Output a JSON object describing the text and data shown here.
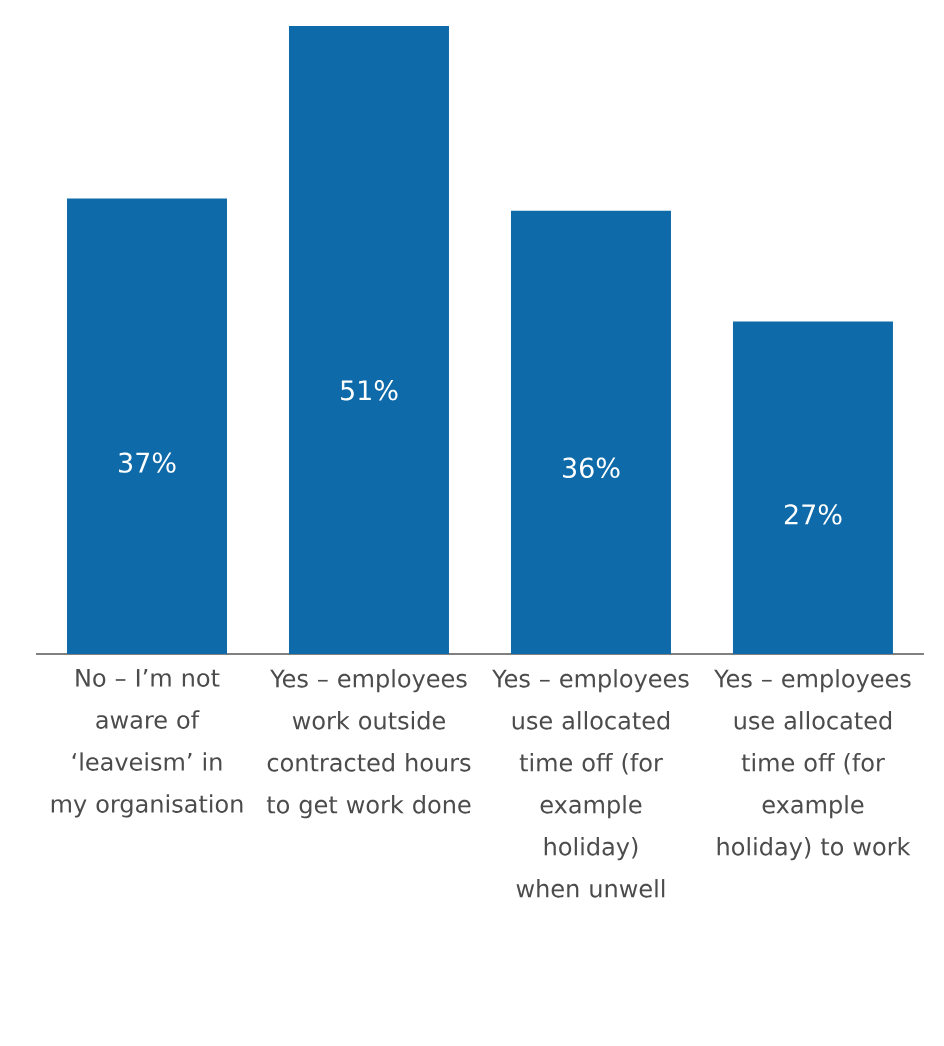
{
  "chart_data": {
    "type": "bar",
    "categories": [
      "No – I’m not aware of ‘leaveism’ in my organisation",
      "Yes – employees work outside contracted hours to get work done",
      "Yes – employees use allocated time off (for example holiday) when unwell",
      "Yes – employees use allocated time off (for example holiday) to work"
    ],
    "values": [
      37,
      51,
      36,
      27
    ],
    "value_labels": [
      "37%",
      "51%",
      "36%",
      "27%"
    ],
    "color": "#0e6aa8",
    "ylim": [
      0,
      51
    ]
  }
}
